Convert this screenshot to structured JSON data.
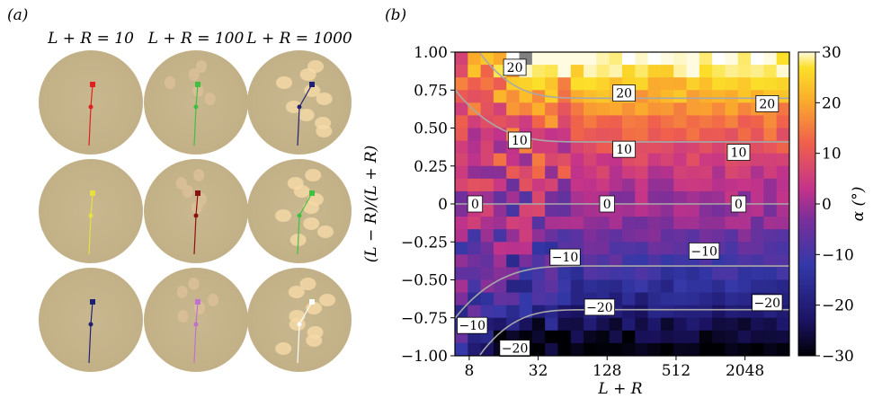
{
  "panel_a": {
    "label": "(a)",
    "columns": [
      "L + R = 10",
      "L + R = 100",
      "L + R = 1000"
    ],
    "circles": [
      {
        "row": 0,
        "col": 0,
        "colour": "#e02020"
      },
      {
        "row": 0,
        "col": 1,
        "colour": "#40c040"
      },
      {
        "row": 0,
        "col": 2,
        "colour": "#202070"
      },
      {
        "row": 1,
        "col": 0,
        "colour": "#e8e040"
      },
      {
        "row": 1,
        "col": 1,
        "colour": "#8a1010"
      },
      {
        "row": 1,
        "col": 2,
        "colour": "#40c040"
      },
      {
        "row": 2,
        "col": 0,
        "colour": "#202070"
      },
      {
        "row": 2,
        "col": 1,
        "colour": "#c070d0"
      },
      {
        "row": 2,
        "col": 2,
        "colour": "#ffffff"
      }
    ]
  },
  "panel_b": {
    "label": "(b)"
  },
  "chart_data": {
    "type": "heatmap",
    "xlabel": "L + R",
    "ylabel": "(L − R)/(L + R)",
    "x_scale": "log2",
    "x_ticks": [
      8,
      32,
      128,
      512,
      2048
    ],
    "x_tick_labels": [
      "8",
      "32",
      "128",
      "512",
      "2048"
    ],
    "xlim": [
      6,
      5000
    ],
    "ylim": [
      -1.0,
      1.0
    ],
    "y_ticks": [
      1.0,
      0.75,
      0.5,
      0.25,
      0,
      -0.25,
      -0.5,
      -0.75,
      -1.0
    ],
    "y_tick_labels": [
      "1.00",
      "0.75",
      "0.50",
      "0.25",
      "0",
      "−0.25",
      "−0.50",
      "−0.75",
      "−1.00"
    ],
    "colorbar": {
      "label": "α (°)",
      "range": [
        -30,
        30
      ],
      "ticks": [
        30,
        20,
        10,
        0,
        -10,
        -20,
        -30
      ],
      "tick_labels": [
        "30",
        "20",
        "10",
        "0",
        "−10",
        "−20",
        "−30"
      ],
      "colormap": "plasma-like"
    },
    "contours": [
      {
        "level": 20,
        "label": "20",
        "label_positions": [
          [
            20,
            0.9
          ],
          [
            180,
            0.73
          ],
          [
            3200,
            0.66
          ]
        ]
      },
      {
        "level": 10,
        "label": "10",
        "label_positions": [
          [
            22,
            0.42
          ],
          [
            180,
            0.36
          ],
          [
            1800,
            0.34
          ]
        ]
      },
      {
        "level": 0,
        "label": "0",
        "label_positions": [
          [
            9,
            0
          ],
          [
            128,
            0
          ],
          [
            1800,
            0
          ]
        ]
      },
      {
        "level": -10,
        "label": "−10",
        "label_positions": [
          [
            55,
            -0.35
          ],
          [
            900,
            -0.31
          ],
          [
            8.5,
            -0.8
          ]
        ]
      },
      {
        "level": -20,
        "label": "−20",
        "label_positions": [
          [
            110,
            -0.68
          ],
          [
            3200,
            -0.65
          ],
          [
            20,
            -0.95
          ]
        ]
      }
    ]
  }
}
